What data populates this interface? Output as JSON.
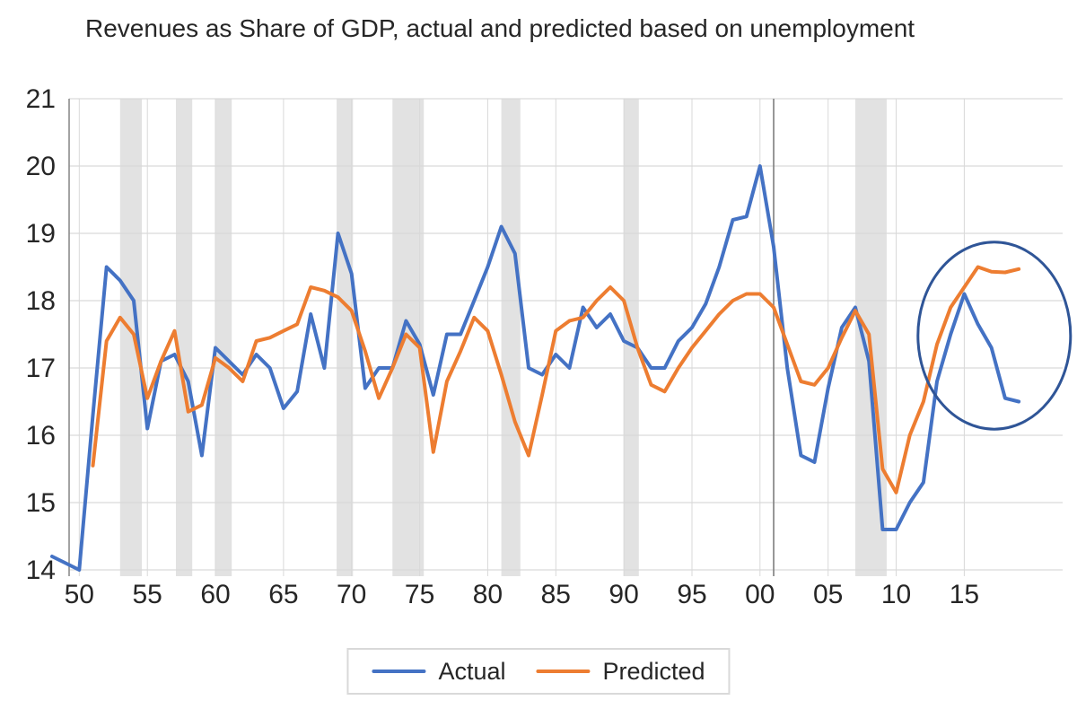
{
  "title": "Revenues as Share of GDP, actual and predicted based on unemployment",
  "colors": {
    "actual": "#4472C4",
    "predicted": "#ED7D31",
    "grid": "#D9D9D9",
    "band": "#E2E2E2",
    "axis_line": "#8C8C8C",
    "reference_line": "#7F7F7F",
    "text": "#262626",
    "ellipse": "#2F5597",
    "legend_border": "#D9D9D9"
  },
  "legend": {
    "items": [
      {
        "label": "Actual",
        "color_key": "actual"
      },
      {
        "label": "Predicted",
        "color_key": "predicted"
      }
    ]
  },
  "chart_data": {
    "type": "line",
    "title": "Revenues as Share of GDP, actual and predicted based on unemployment",
    "xlabel": "",
    "ylabel": "",
    "ylim": [
      14,
      21
    ],
    "y_ticks": [
      21,
      20,
      19,
      18,
      17,
      16,
      15,
      14
    ],
    "x_axis": {
      "tick_years": [
        1950,
        1955,
        1960,
        1965,
        1970,
        1975,
        1980,
        1985,
        1990,
        1995,
        2000,
        2005,
        2010,
        2015
      ],
      "tick_labels": [
        "50",
        "55",
        "60",
        "65",
        "70",
        "75",
        "80",
        "85",
        "90",
        "95",
        "00",
        "05",
        "10",
        "15"
      ]
    },
    "grid": true,
    "legend_position": "bottom",
    "series": [
      {
        "name": "Actual",
        "color_key": "actual",
        "start_year": 1948,
        "end_year": 2019,
        "values": [
          14.2,
          14.1,
          14.0,
          16.3,
          18.5,
          18.3,
          18.0,
          16.1,
          17.1,
          17.2,
          16.8,
          15.7,
          17.3,
          17.1,
          16.9,
          17.2,
          17.0,
          16.4,
          16.65,
          17.8,
          17.0,
          19.0,
          18.4,
          16.7,
          17.0,
          17.0,
          17.7,
          17.35,
          16.6,
          17.5,
          17.5,
          18.0,
          18.5,
          19.1,
          18.7,
          17.0,
          16.9,
          17.2,
          17.0,
          17.9,
          17.6,
          17.8,
          17.4,
          17.3,
          17.0,
          17.0,
          17.4,
          17.6,
          17.95,
          18.5,
          19.2,
          19.25,
          20.0,
          18.8,
          17.0,
          15.7,
          15.6,
          16.7,
          17.6,
          17.9,
          17.1,
          14.6,
          14.6,
          15.0,
          15.3,
          16.8,
          17.5,
          18.1,
          17.65,
          17.3,
          16.55,
          16.5
        ]
      },
      {
        "name": "Predicted",
        "color_key": "predicted",
        "start_year": 1951,
        "end_year": 2019,
        "values": [
          15.55,
          17.4,
          17.75,
          17.5,
          16.55,
          17.1,
          17.55,
          16.35,
          16.45,
          17.15,
          17.0,
          16.8,
          17.4,
          17.45,
          17.55,
          17.65,
          18.2,
          18.15,
          18.05,
          17.85,
          17.25,
          16.55,
          17.0,
          17.5,
          17.3,
          15.75,
          16.8,
          17.25,
          17.75,
          17.55,
          16.9,
          16.2,
          15.7,
          16.6,
          17.55,
          17.7,
          17.75,
          18.0,
          18.2,
          18.0,
          17.3,
          16.75,
          16.65,
          17.0,
          17.3,
          17.55,
          17.8,
          18.0,
          18.1,
          18.1,
          17.9,
          17.35,
          16.8,
          16.75,
          17.0,
          17.45,
          17.85,
          17.5,
          15.5,
          15.15,
          16.0,
          16.5,
          17.35,
          17.9,
          18.2,
          18.5,
          18.43,
          18.42,
          18.47
        ]
      }
    ],
    "recession_bands_years": [
      [
        1953.0,
        1954.6
      ],
      [
        1957.1,
        1958.3
      ],
      [
        1960.0,
        1961.2
      ],
      [
        1968.9,
        1970.1
      ],
      [
        1973.0,
        1975.3
      ],
      [
        1981.0,
        1982.4
      ],
      [
        1990.0,
        1991.1
      ],
      [
        2007.0,
        2009.3
      ]
    ],
    "reference_line_year": 2001,
    "annotation_ellipse": {
      "center_year": 2017.2,
      "center_value": 17.48,
      "radius_years": 5.6,
      "radius_values": 1.39
    }
  }
}
